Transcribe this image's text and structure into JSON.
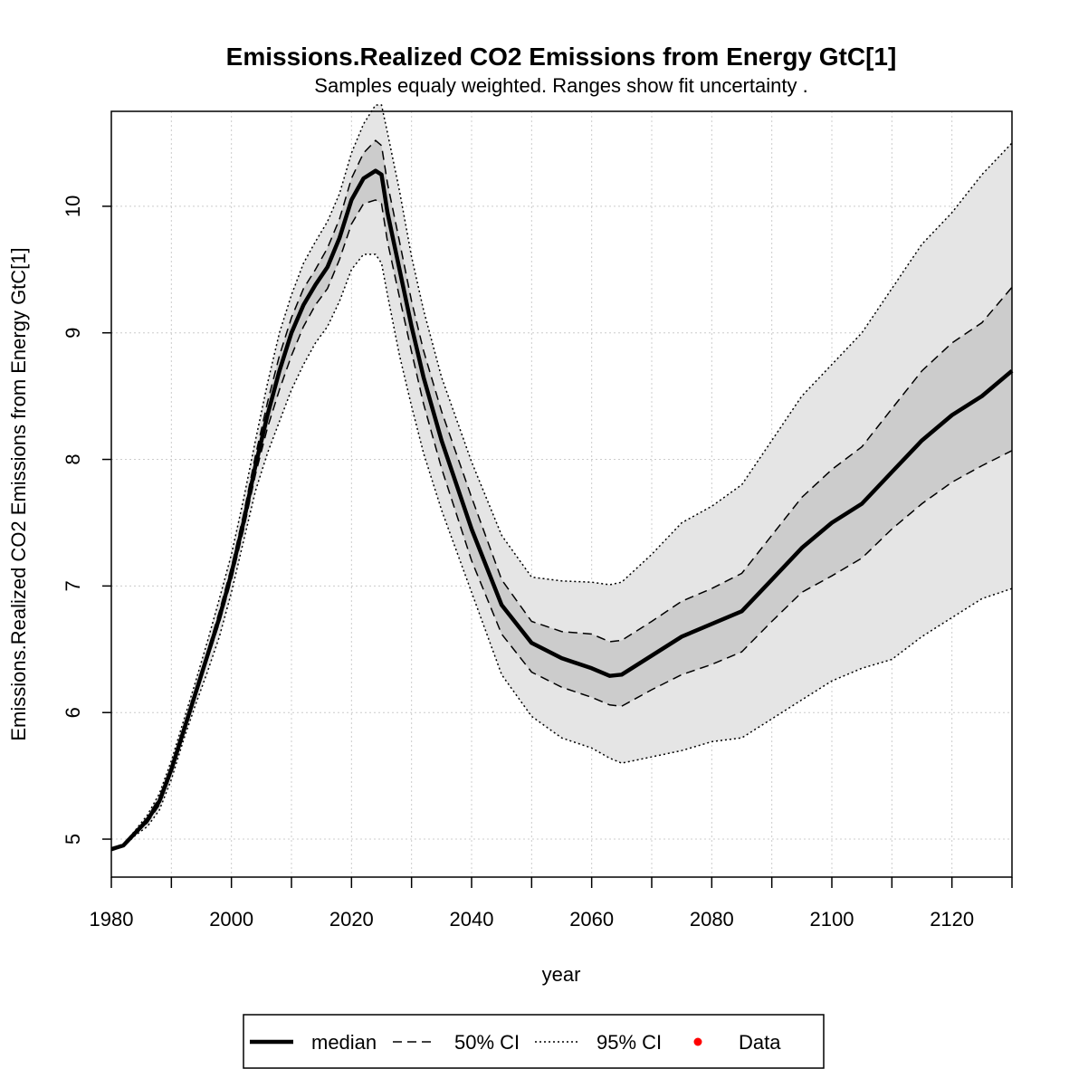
{
  "chart_data": {
    "type": "line",
    "title": "Emissions.Realized CO2 Emissions from Energy GtC[1]",
    "subtitle": "Samples equaly weighted. Ranges show  fit uncertainty .",
    "xlabel": "year",
    "ylabel": "Emissions.Realized CO2 Emissions from Energy GtC[1]",
    "xlim": [
      1980,
      2130
    ],
    "ylim": [
      4.7,
      10.75
    ],
    "x_ticks": [
      1980,
      2000,
      2020,
      2040,
      2060,
      2080,
      2100,
      2120
    ],
    "y_ticks": [
      5,
      6,
      7,
      8,
      9,
      10
    ],
    "grid": true,
    "legend_position": "bottom",
    "legend": [
      {
        "label": "median",
        "style": "solid"
      },
      {
        "label": "50% CI",
        "style": "dashed"
      },
      {
        "label": "95% CI",
        "style": "dotted"
      },
      {
        "label": "Data",
        "style": "point",
        "color": "#ff0000"
      }
    ],
    "colors": {
      "ci95_fill": "#e5e5e5",
      "ci50_fill": "#cccccc",
      "line": "#000000",
      "grid": "#cccccc",
      "data": "#ff0000"
    },
    "x": [
      1980,
      1982,
      1984,
      1986,
      1988,
      1990,
      1992,
      1994,
      1996,
      1998,
      2000,
      2002,
      2004,
      2006,
      2008,
      2010,
      2012,
      2014,
      2016,
      2018,
      2020,
      2022,
      2024,
      2025,
      2026,
      2028,
      2030,
      2032,
      2035,
      2040,
      2045,
      2050,
      2055,
      2060,
      2063,
      2065,
      2070,
      2075,
      2080,
      2085,
      2090,
      2095,
      2100,
      2105,
      2110,
      2115,
      2120,
      2125,
      2130
    ],
    "series": [
      {
        "name": "median",
        "values": [
          4.92,
          4.95,
          5.05,
          5.15,
          5.3,
          5.55,
          5.85,
          6.15,
          6.45,
          6.75,
          7.1,
          7.5,
          7.95,
          8.35,
          8.7,
          9.0,
          9.22,
          9.38,
          9.52,
          9.75,
          10.05,
          10.22,
          10.28,
          10.25,
          9.95,
          9.5,
          9.05,
          8.65,
          8.15,
          7.45,
          6.85,
          6.55,
          6.43,
          6.35,
          6.29,
          6.3,
          6.45,
          6.6,
          6.7,
          6.8,
          7.05,
          7.3,
          7.5,
          7.65,
          7.9,
          8.15,
          8.35,
          8.5,
          8.7
        ]
      },
      {
        "name": "50% CI upper",
        "values": [
          4.92,
          4.95,
          5.06,
          5.17,
          5.33,
          5.58,
          5.88,
          6.18,
          6.48,
          6.8,
          7.15,
          7.56,
          8.03,
          8.45,
          8.82,
          9.12,
          9.35,
          9.5,
          9.67,
          9.9,
          10.22,
          10.42,
          10.52,
          10.48,
          10.18,
          9.72,
          9.25,
          8.86,
          8.38,
          7.7,
          7.05,
          6.72,
          6.64,
          6.62,
          6.56,
          6.57,
          6.72,
          6.88,
          6.98,
          7.1,
          7.4,
          7.7,
          7.92,
          8.1,
          8.4,
          8.7,
          8.92,
          9.08,
          9.36
        ]
      },
      {
        "name": "50% CI lower",
        "values": [
          4.92,
          4.95,
          5.04,
          5.13,
          5.27,
          5.52,
          5.82,
          6.12,
          6.42,
          6.71,
          7.05,
          7.44,
          7.88,
          8.25,
          8.55,
          8.82,
          9.05,
          9.22,
          9.35,
          9.58,
          9.86,
          10.02,
          10.05,
          10.02,
          9.72,
          9.28,
          8.85,
          8.44,
          7.93,
          7.2,
          6.62,
          6.32,
          6.2,
          6.12,
          6.06,
          6.05,
          6.18,
          6.3,
          6.38,
          6.48,
          6.72,
          6.95,
          7.08,
          7.22,
          7.45,
          7.65,
          7.82,
          7.95,
          8.07
        ]
      },
      {
        "name": "95% CI upper",
        "values": [
          4.92,
          4.96,
          5.07,
          5.19,
          5.36,
          5.62,
          5.93,
          6.24,
          6.56,
          6.9,
          7.25,
          7.68,
          8.15,
          8.6,
          9.0,
          9.3,
          9.55,
          9.72,
          9.88,
          10.1,
          10.42,
          10.65,
          10.8,
          10.8,
          10.58,
          10.12,
          9.6,
          9.18,
          8.65,
          7.98,
          7.4,
          7.07,
          7.04,
          7.03,
          7.01,
          7.03,
          7.25,
          7.5,
          7.63,
          7.8,
          8.15,
          8.5,
          8.75,
          9.0,
          9.35,
          9.7,
          9.95,
          10.25,
          10.5
        ]
      },
      {
        "name": "95% CI lower",
        "values": [
          4.92,
          4.94,
          5.03,
          5.1,
          5.23,
          5.47,
          5.78,
          6.06,
          6.32,
          6.6,
          6.95,
          7.35,
          7.75,
          8.05,
          8.3,
          8.55,
          8.75,
          8.92,
          9.05,
          9.25,
          9.5,
          9.62,
          9.62,
          9.55,
          9.3,
          8.82,
          8.42,
          8.05,
          7.6,
          6.95,
          6.3,
          5.97,
          5.8,
          5.72,
          5.64,
          5.6,
          5.65,
          5.7,
          5.77,
          5.8,
          5.95,
          6.1,
          6.25,
          6.35,
          6.42,
          6.6,
          6.75,
          6.9,
          6.98
        ]
      }
    ]
  }
}
